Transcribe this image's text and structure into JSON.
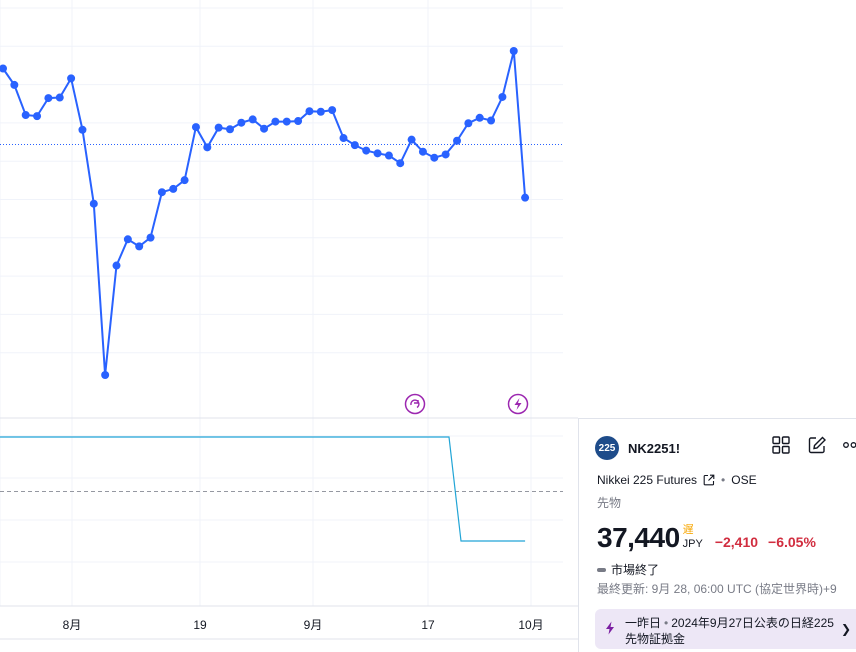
{
  "chart_data": {
    "type": "line",
    "title": "",
    "xlabel": "",
    "ylabel": "",
    "x_tick_labels": [
      "8月",
      "19",
      "9月",
      "17",
      "10月"
    ],
    "series": [
      {
        "values": [
          39800,
          39500,
          38950,
          38930,
          39260,
          39270,
          39620,
          38680,
          37330,
          34200,
          36200,
          36680,
          36550,
          36710,
          37540,
          37600,
          37760,
          38730,
          38360,
          38720,
          38690,
          38810,
          38870,
          38700,
          38830,
          38830,
          38840,
          39020,
          39010,
          39040,
          38530,
          38400,
          38300,
          38250,
          38210,
          38070,
          38500,
          38280,
          38170,
          38230,
          38480,
          38800,
          38900,
          38850,
          39280,
          40120,
          37440
        ]
      }
    ],
    "last_value": 37440,
    "indicator": {
      "high": 1.0,
      "low": 0.0,
      "step_index": 42
    }
  },
  "markers": {
    "dividend_icon": "arrow-circle-icon",
    "event_icon": "lightning-icon"
  },
  "panel": {
    "logo_text": "225",
    "symbol": "NK2251!",
    "description": "Nikkei 225 Futures",
    "exchange": "OSE",
    "category": "先物",
    "price": "37,440",
    "delay_badge": "遅",
    "currency": "JPY",
    "change": "−2,410",
    "change_pct": "−6.05%",
    "market_status": "市場終了",
    "last_update": "最終更新: 9月 28, 06:00 UTC (協定世界時)+9",
    "news": {
      "time": "一昨日",
      "headline_line1": "2024年9月27日公表の日経225",
      "headline_line2": "先物証拠金"
    }
  },
  "colors": {
    "line": "#2962ff",
    "indicator": "#22a5d6",
    "negative": "#d12d3f",
    "delay": "#f7a600",
    "news_bg": "#ede7f6"
  }
}
